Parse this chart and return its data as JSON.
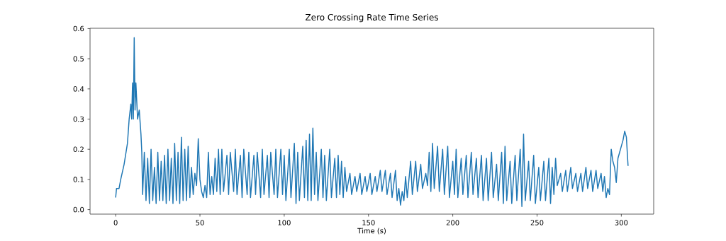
{
  "chart_data": {
    "type": "line",
    "title": "Zero Crossing Rate Time Series",
    "xlabel": "Time (s)",
    "xlim": [
      -15.2,
      319.2
    ],
    "ylim": [
      -0.015,
      0.601
    ],
    "xticks": [
      0,
      50,
      100,
      150,
      200,
      250,
      300
    ],
    "yticks": [
      {
        "value": 0,
        "label": "0.0"
      },
      {
        "value": 0.1,
        "label": "0.1"
      },
      {
        "value": 0.2,
        "label": "0.2"
      },
      {
        "value": 0.3,
        "label": "0.3"
      },
      {
        "value": 0.4,
        "label": "0.4"
      },
      {
        "value": 0.5,
        "label": "0.5"
      },
      {
        "value": 0.6,
        "label": "0.6"
      }
    ],
    "grid": false,
    "marker": "none",
    "line_style": "solid",
    "series": [
      {
        "color": "#1f77b4",
        "x": [
          0,
          0.5,
          2,
          3,
          5,
          7,
          8,
          9,
          9.5,
          10,
          10.5,
          11,
          11.5,
          12,
          13,
          14,
          15,
          15.5,
          16,
          17,
          18,
          19,
          20,
          21,
          22,
          23,
          24,
          25,
          26,
          27,
          28,
          29,
          30,
          31,
          32,
          33,
          34,
          35,
          36,
          37,
          38,
          39,
          40,
          41,
          42,
          43,
          44,
          45,
          46,
          47,
          48,
          49,
          50,
          51,
          52,
          53,
          54,
          55,
          56,
          57,
          58,
          59,
          60,
          61,
          62,
          63,
          64,
          66,
          67,
          68,
          70,
          71,
          72,
          74,
          75,
          76,
          78,
          79,
          80,
          82,
          83,
          84,
          86,
          87,
          88,
          90,
          91,
          92,
          94,
          95,
          96,
          98,
          99,
          100,
          101,
          103,
          104,
          106,
          107,
          108,
          109,
          111,
          112,
          113,
          114,
          115,
          116,
          117,
          118,
          119,
          120,
          122,
          123,
          124,
          125,
          127,
          128,
          130,
          131,
          132,
          133,
          134,
          135,
          136,
          137,
          139,
          140,
          142,
          143,
          145,
          146,
          148,
          149,
          151,
          152,
          154,
          155,
          157,
          158,
          160,
          161,
          163,
          164,
          166,
          167,
          168,
          169,
          170,
          171,
          172,
          173,
          175,
          176,
          178,
          179,
          181,
          182,
          184,
          185,
          186,
          187,
          188,
          189,
          191,
          192,
          194,
          195,
          197,
          198,
          200,
          201,
          202,
          203,
          205,
          206,
          208,
          209,
          211,
          212,
          214,
          215,
          217,
          218,
          220,
          221,
          223,
          224,
          226,
          227,
          229,
          230,
          231,
          232,
          234,
          235,
          237,
          238,
          240,
          241,
          242,
          243,
          245,
          246,
          248,
          249,
          251,
          252,
          254,
          255,
          257,
          258,
          259,
          260,
          261,
          262,
          264,
          265,
          267,
          268,
          270,
          271,
          273,
          274,
          276,
          277,
          279,
          280,
          282,
          283,
          285,
          286,
          288,
          289,
          290,
          291,
          292,
          293,
          294,
          295,
          296,
          297,
          298,
          299,
          300,
          301,
          302,
          303,
          304
        ],
        "values": [
          0.04,
          0.07,
          0.07,
          0.1,
          0.15,
          0.22,
          0.3,
          0.35,
          0.3,
          0.42,
          0.3,
          0.57,
          0.33,
          0.42,
          0.3,
          0.33,
          0.25,
          0.19,
          0.05,
          0.19,
          0.03,
          0.17,
          0.02,
          0.2,
          0.03,
          0.14,
          0.02,
          0.19,
          0.03,
          0.16,
          0.03,
          0.18,
          0.02,
          0.2,
          0.03,
          0.17,
          0.02,
          0.22,
          0.03,
          0.19,
          0.02,
          0.24,
          0.03,
          0.2,
          0.03,
          0.21,
          0.04,
          0.14,
          0.05,
          0.12,
          0.08,
          0.235,
          0.1,
          0.06,
          0.04,
          0.08,
          0.04,
          0.19,
          0.05,
          0.11,
          0.05,
          0.17,
          0.06,
          0.2,
          0.05,
          0.2,
          0.06,
          0.18,
          0.05,
          0.19,
          0.06,
          0.2,
          0.05,
          0.18,
          0.04,
          0.2,
          0.05,
          0.19,
          0.04,
          0.18,
          0.05,
          0.19,
          0.04,
          0.2,
          0.05,
          0.18,
          0.04,
          0.19,
          0.05,
          0.2,
          0.04,
          0.2,
          0.05,
          0.18,
          0.03,
          0.2,
          0.04,
          0.22,
          0.02,
          0.19,
          0.03,
          0.21,
          0.04,
          0.23,
          0.03,
          0.25,
          0.03,
          0.27,
          0.05,
          0.19,
          0.03,
          0.2,
          0.04,
          0.18,
          0.03,
          0.2,
          0.04,
          0.17,
          0.04,
          0.18,
          0.05,
          0.16,
          0.04,
          0.14,
          0.06,
          0.12,
          0.05,
          0.11,
          0.06,
          0.12,
          0.05,
          0.11,
          0.06,
          0.12,
          0.05,
          0.11,
          0.06,
          0.13,
          0.06,
          0.13,
          0.05,
          0.12,
          0.04,
          0.13,
          0.03,
          0.07,
          0.015,
          0.06,
          0.03,
          0.11,
          0.04,
          0.16,
          0.05,
          0.16,
          0.06,
          0.15,
          0.07,
          0.12,
          0.08,
          0.19,
          0.06,
          0.22,
          0.07,
          0.21,
          0.06,
          0.2,
          0.05,
          0.21,
          0.04,
          0.16,
          0.05,
          0.2,
          0.04,
          0.17,
          0.05,
          0.18,
          0.04,
          0.19,
          0.05,
          0.17,
          0.04,
          0.18,
          0.03,
          0.17,
          0.03,
          0.19,
          0.04,
          0.15,
          0.03,
          0.19,
          0.02,
          0.21,
          0.03,
          0.16,
          0.02,
          0.18,
          0.03,
          0.2,
          0.01,
          0.25,
          0.03,
          0.16,
          0.03,
          0.18,
          0.02,
          0.14,
          0.03,
          0.16,
          0.03,
          0.17,
          0.02,
          0.14,
          0.05,
          0.17,
          0.08,
          0.12,
          0.06,
          0.13,
          0.06,
          0.14,
          0.07,
          0.12,
          0.06,
          0.12,
          0.06,
          0.14,
          0.07,
          0.13,
          0.06,
          0.13,
          0.07,
          0.12,
          0.06,
          0.11,
          0.04,
          0.07,
          0.05,
          0.2,
          0.16,
          0.14,
          0.09,
          0.17,
          0.19,
          0.21,
          0.23,
          0.26,
          0.24,
          0.145
        ]
      }
    ]
  }
}
